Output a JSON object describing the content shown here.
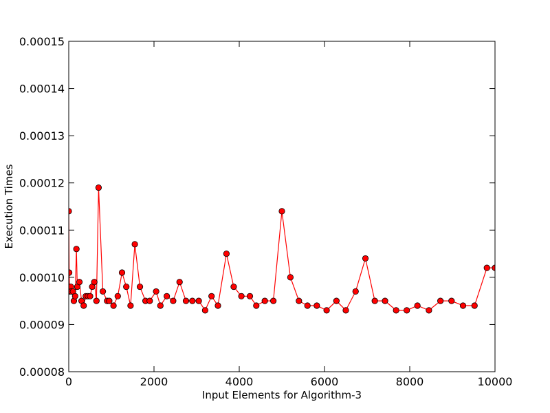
{
  "chart_data": {
    "type": "line",
    "title": "",
    "xlabel": "Input Elements for Algorithm-3",
    "ylabel": "Execution Times",
    "xlim": [
      0,
      10000
    ],
    "ylim": [
      8e-05,
      0.00015
    ],
    "xticks": [
      0,
      2000,
      4000,
      6000,
      8000,
      10000
    ],
    "xtick_labels": [
      "0",
      "2000",
      "4000",
      "6000",
      "8000",
      "10000"
    ],
    "yticks": [
      8e-05,
      9e-05,
      0.0001,
      0.00011,
      0.00012,
      0.00013,
      0.00014,
      0.00015
    ],
    "ytick_labels": [
      "0.00008",
      "0.00009",
      "0.00010",
      "0.00011",
      "0.00012",
      "0.00013",
      "0.00014",
      "0.00015"
    ],
    "grid": false,
    "legend": "none",
    "colors": {
      "line": "#ff0000",
      "marker_fill": "#ff0000",
      "marker_edge": "#000000"
    },
    "series": [
      {
        "x": [
          0,
          10,
          20,
          50,
          60,
          100,
          120,
          150,
          180,
          200,
          250,
          300,
          350,
          400,
          450,
          500,
          550,
          600,
          650,
          700,
          800,
          900,
          950,
          1050,
          1150,
          1250,
          1350,
          1450,
          1550,
          1670,
          1800,
          1900,
          2050,
          2150,
          2300,
          2450,
          2600,
          2750,
          2900,
          3050,
          3200,
          3350,
          3500,
          3700,
          3870,
          4050,
          4250,
          4400,
          4600,
          4800,
          5000,
          5200,
          5400,
          5600,
          5820,
          6050,
          6280,
          6500,
          6730,
          6960,
          7180,
          7420,
          7680,
          7930,
          8180,
          8450,
          8720,
          8980,
          9250,
          9520,
          9810,
          10000
        ],
        "y": [
          0.000114,
          0.000101,
          9.7e-05,
          9.8e-05,
          9.7e-05,
          9.7e-05,
          9.5e-05,
          9.6e-05,
          0.000106,
          9.8e-05,
          9.9e-05,
          9.5e-05,
          9.4e-05,
          9.6e-05,
          9.6e-05,
          9.6e-05,
          9.8e-05,
          9.9e-05,
          9.5e-05,
          0.000119,
          9.7e-05,
          9.5e-05,
          9.5e-05,
          9.4e-05,
          9.6e-05,
          0.000101,
          9.8e-05,
          9.4e-05,
          0.000107,
          9.8e-05,
          9.5e-05,
          9.5e-05,
          9.7e-05,
          9.4e-05,
          9.6e-05,
          9.5e-05,
          9.9e-05,
          9.5e-05,
          9.5e-05,
          9.5e-05,
          9.3e-05,
          9.6e-05,
          9.4e-05,
          0.000105,
          9.8e-05,
          9.6e-05,
          9.6e-05,
          9.4e-05,
          9.5e-05,
          9.5e-05,
          0.000114,
          0.0001,
          9.5e-05,
          9.4e-05,
          9.4e-05,
          9.3e-05,
          9.5e-05,
          9.3e-05,
          9.7e-05,
          0.000104,
          9.5e-05,
          9.5e-05,
          9.3e-05,
          9.3e-05,
          9.4e-05,
          9.3e-05,
          9.5e-05,
          9.5e-05,
          9.4e-05,
          9.4e-05,
          0.000102,
          0.000102
        ]
      }
    ]
  }
}
